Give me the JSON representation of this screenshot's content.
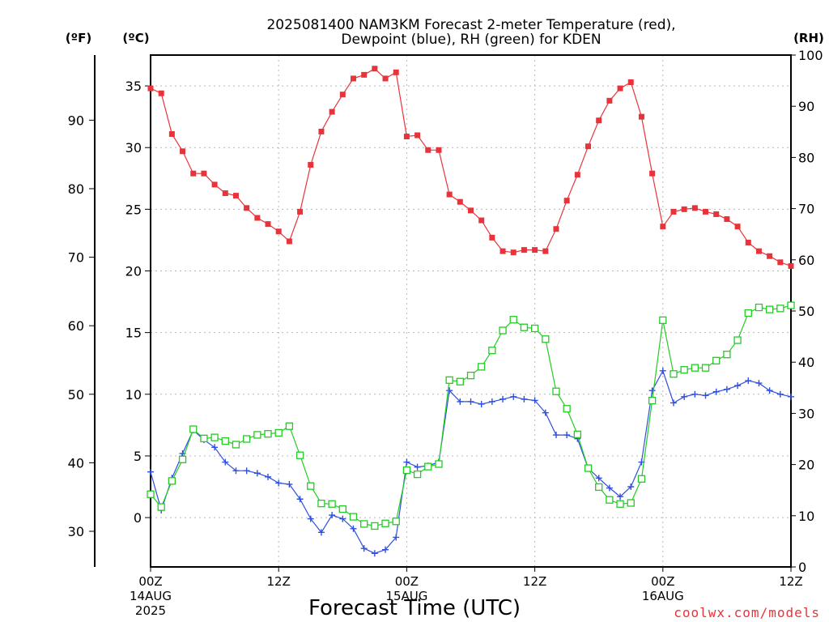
{
  "chart_data": {
    "type": "line",
    "title_line1": "2025081400 NAM3KM Forecast 2-meter Temperature (red),",
    "title_line2": "Dewpoint (blue), RH (green) for KDEN",
    "unit_f": "(ºF)",
    "unit_c": "(ºC)",
    "unit_rh": "(RH)",
    "xlabel": "Forecast Time (UTC)",
    "watermark": "coolwx.com/models",
    "x_hour_range": [
      0,
      60
    ],
    "x_ticks": [
      {
        "hour": 0,
        "label": "00Z",
        "sub1": "14AUG",
        "sub2": "2025"
      },
      {
        "hour": 12,
        "label": "12Z",
        "sub1": "",
        "sub2": ""
      },
      {
        "hour": 24,
        "label": "00Z",
        "sub1": "15AUG",
        "sub2": ""
      },
      {
        "hour": 36,
        "label": "12Z",
        "sub1": "",
        "sub2": ""
      },
      {
        "hour": 48,
        "label": "00Z",
        "sub1": "16AUG",
        "sub2": ""
      },
      {
        "hour": 60,
        "label": "12Z",
        "sub1": "",
        "sub2": ""
      }
    ],
    "celsius_range": [
      -4,
      37.5
    ],
    "celsius_ticks": [
      "0",
      "5",
      "10",
      "15",
      "20",
      "25",
      "30",
      "35"
    ],
    "fahrenheit_ticks": [
      "30",
      "40",
      "50",
      "60",
      "70",
      "80",
      "90"
    ],
    "rh_range": [
      0,
      100
    ],
    "rh_ticks": [
      "0",
      "10",
      "20",
      "30",
      "40",
      "50",
      "60",
      "70",
      "80",
      "90",
      "100"
    ],
    "grid": true,
    "series": [
      {
        "name": "Temperature",
        "color": "#e8333a",
        "marker": "filled-square",
        "axis": "celsius",
        "values": [
          34.8,
          34.4,
          31.1,
          29.7,
          27.9,
          27.9,
          27.0,
          26.3,
          26.1,
          25.1,
          24.3,
          23.8,
          23.2,
          22.4,
          24.8,
          28.6,
          31.3,
          32.9,
          34.3,
          35.6,
          35.9,
          36.4,
          35.6,
          36.1,
          30.9,
          31.0,
          29.8,
          29.8,
          26.2,
          25.6,
          24.9,
          24.1,
          22.7,
          21.6,
          21.5,
          21.7,
          21.7,
          21.6,
          23.4,
          25.7,
          27.8,
          30.1,
          32.2,
          33.8,
          34.8,
          35.3,
          32.5,
          27.9,
          23.6,
          24.8,
          25.0,
          25.1,
          24.8,
          24.6,
          24.2,
          23.6,
          22.3,
          21.6,
          21.2,
          20.7,
          20.4
        ]
      },
      {
        "name": "Dewpoint",
        "color": "#2f4fe0",
        "marker": "plus",
        "axis": "celsius",
        "values": [
          3.7,
          0.6,
          3.2,
          5.2,
          7.1,
          6.3,
          5.7,
          4.5,
          3.8,
          3.8,
          3.6,
          3.3,
          2.8,
          2.7,
          1.5,
          -0.1,
          -1.2,
          0.2,
          -0.1,
          -0.9,
          -2.5,
          -2.9,
          -2.6,
          -1.6,
          4.5,
          4.1,
          4.2,
          4.5,
          10.3,
          9.4,
          9.4,
          9.2,
          9.4,
          9.6,
          9.8,
          9.6,
          9.5,
          8.5,
          6.7,
          6.7,
          6.4,
          4.0,
          3.2,
          2.4,
          1.7,
          2.5,
          4.5,
          10.3,
          11.9,
          9.3,
          9.8,
          10.0,
          9.9,
          10.2,
          10.4,
          10.7,
          11.1,
          10.9,
          10.3,
          10.0,
          9.8
        ]
      },
      {
        "name": "RH",
        "color": "#22cc22",
        "marker": "open-square",
        "axis": "rh",
        "values": [
          14.2,
          11.7,
          16.8,
          21.0,
          26.9,
          25.1,
          25.3,
          24.6,
          23.9,
          25.0,
          25.8,
          26.0,
          26.2,
          27.5,
          21.8,
          15.8,
          12.4,
          12.3,
          11.3,
          9.8,
          8.4,
          8.0,
          8.5,
          8.9,
          18.9,
          18.1,
          19.6,
          20.1,
          36.5,
          36.2,
          37.4,
          39.1,
          42.3,
          46.2,
          48.3,
          46.8,
          46.6,
          44.5,
          34.3,
          30.9,
          25.9,
          19.3,
          15.6,
          13.1,
          12.3,
          12.5,
          17.2,
          32.5,
          48.2,
          37.7,
          38.5,
          38.9,
          38.9,
          40.3,
          41.5,
          44.3,
          49.6,
          50.7,
          50.3,
          50.5,
          51.1
        ]
      }
    ]
  }
}
